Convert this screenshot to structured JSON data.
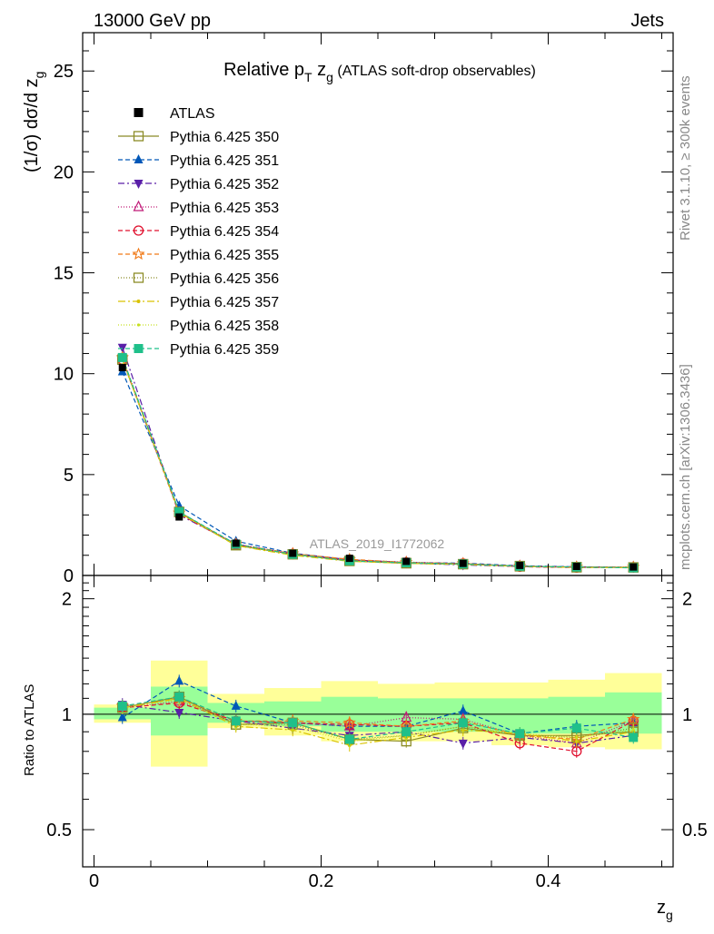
{
  "header": {
    "left": "13000 GeV pp",
    "right": "Jets"
  },
  "plot_title": {
    "main": "Relative p",
    "sub1": "T",
    "mid": " z",
    "sub2": "g",
    "tail": " (ATLAS soft-drop observables)"
  },
  "side_labels": {
    "rivet": "Rivet 3.1.10, ≥ 300k events",
    "mcplots": "mcplots.cern.ch [arXiv:1306.3436]"
  },
  "watermark": "ATLAS_2019_I1772062",
  "axes": {
    "ylabel_main": "(1/σ) dσ/d z",
    "ylabel_main_sub": "g",
    "ylabel_ratio": "Ratio to ATLAS",
    "xlabel": "z",
    "xlabel_sub": "g",
    "main_yticks": [
      "0",
      "5",
      "10",
      "15",
      "20",
      "25"
    ],
    "ratio_yticks_left": [
      "0.5",
      "1",
      "2"
    ],
    "ratio_yticks_right": [
      "0.5",
      "1",
      "2"
    ],
    "xticks": [
      "0",
      "0.2",
      "0.4"
    ]
  },
  "chart_data": {
    "type": "line",
    "title": "Relative pT zg (ATLAS soft-drop observables)",
    "xlabel": "zg",
    "ylabel": "(1/σ) dσ/d zg",
    "xlim": [
      -0.01,
      0.51
    ],
    "ylim": [
      0,
      26.9
    ],
    "ratio_ylim": [
      0.4,
      2.3
    ],
    "ratio_scale": "log",
    "grid": false,
    "legend_position": "top-left",
    "x": [
      0.025,
      0.075,
      0.125,
      0.175,
      0.225,
      0.275,
      0.325,
      0.375,
      0.425,
      0.475
    ],
    "bin_edges": [
      0.0,
      0.05,
      0.1,
      0.15,
      0.2,
      0.25,
      0.3,
      0.35,
      0.4,
      0.45,
      0.5
    ],
    "data": {
      "name": "ATLAS",
      "values": [
        10.3,
        2.9,
        1.6,
        1.1,
        0.85,
        0.7,
        0.6,
        0.5,
        0.45,
        0.42
      ],
      "ratio_band_inner": [
        [
          0.97,
          1.04
        ],
        [
          0.88,
          1.18
        ],
        [
          0.95,
          1.07
        ],
        [
          0.93,
          1.08
        ],
        [
          0.9,
          1.11
        ],
        [
          0.9,
          1.1
        ],
        [
          0.9,
          1.1
        ],
        [
          0.89,
          1.1
        ],
        [
          0.89,
          1.11
        ],
        [
          0.89,
          1.14
        ]
      ],
      "ratio_band_outer": [
        [
          0.95,
          1.06
        ],
        [
          0.73,
          1.38
        ],
        [
          0.92,
          1.13
        ],
        [
          0.88,
          1.17
        ],
        [
          0.85,
          1.22
        ],
        [
          0.85,
          1.2
        ],
        [
          0.85,
          1.21
        ],
        [
          0.83,
          1.21
        ],
        [
          0.82,
          1.23
        ],
        [
          0.81,
          1.28
        ]
      ]
    },
    "series": [
      {
        "name": "Pythia 6.425 350",
        "color": "#8b8b26",
        "dash": "",
        "marker": "square-open",
        "values": [
          10.7,
          3.15,
          1.5,
          1.05,
          0.72,
          0.6,
          0.56,
          0.47,
          0.42,
          0.4
        ],
        "ratio": [
          1.04,
          1.11,
          0.94,
          0.95,
          0.86,
          0.85,
          0.92,
          0.88,
          0.88,
          0.9
        ]
      },
      {
        "name": "Pythia 6.425 351",
        "color": "#0057b8",
        "dash": "5,3",
        "marker": "triangle-up",
        "values": [
          10.1,
          3.45,
          1.7,
          1.1,
          0.78,
          0.64,
          0.61,
          0.48,
          0.43,
          0.41
        ],
        "ratio": [
          0.98,
          1.22,
          1.05,
          0.95,
          0.93,
          0.93,
          1.02,
          0.89,
          0.93,
          0.95
        ]
      },
      {
        "name": "Pythia 6.425 352",
        "color": "#5a1fa8",
        "dash": "7,3,2,3",
        "marker": "triangle-down",
        "values": [
          11.3,
          3.0,
          1.55,
          1.05,
          0.74,
          0.62,
          0.52,
          0.44,
          0.41,
          0.39
        ],
        "ratio": [
          1.06,
          1.01,
          0.96,
          0.92,
          0.88,
          0.9,
          0.84,
          0.87,
          0.84,
          0.88
        ]
      },
      {
        "name": "Pythia 6.425 353",
        "color": "#c01b78",
        "dash": "1,2",
        "marker": "triangle-open",
        "values": [
          10.8,
          3.1,
          1.55,
          1.08,
          0.77,
          0.66,
          0.59,
          0.47,
          0.42,
          0.41
        ],
        "ratio": [
          1.04,
          1.08,
          0.96,
          0.95,
          0.93,
          0.98,
          0.97,
          0.88,
          0.84,
          0.96
        ]
      },
      {
        "name": "Pythia 6.425 354",
        "color": "#e0102e",
        "dash": "5,3",
        "marker": "circle-open",
        "values": [
          10.7,
          3.05,
          1.52,
          1.07,
          0.78,
          0.64,
          0.59,
          0.43,
          0.39,
          0.4
        ],
        "ratio": [
          1.04,
          1.07,
          0.96,
          0.95,
          0.94,
          0.93,
          0.95,
          0.84,
          0.8,
          0.96
        ]
      },
      {
        "name": "Pythia 6.425 355",
        "color": "#f07a18",
        "dash": "5,3",
        "marker": "star",
        "values": [
          10.8,
          3.1,
          1.55,
          1.08,
          0.8,
          0.65,
          0.59,
          0.46,
          0.42,
          0.41
        ],
        "ratio": [
          1.05,
          1.1,
          0.96,
          0.96,
          0.95,
          0.93,
          0.96,
          0.88,
          0.86,
          0.97
        ]
      },
      {
        "name": "Pythia 6.425 356",
        "color": "#8b8b26",
        "dash": "1,2",
        "marker": "square-open",
        "values": [
          10.7,
          3.15,
          1.5,
          1.05,
          0.72,
          0.62,
          0.56,
          0.45,
          0.4,
          0.4
        ],
        "ratio": [
          1.04,
          1.11,
          0.94,
          0.94,
          0.86,
          0.88,
          0.93,
          0.88,
          0.87,
          0.92
        ]
      },
      {
        "name": "Pythia 6.425 357",
        "color": "#d9c200",
        "dash": "8,3,2,3",
        "marker": "dot-line",
        "values": [
          10.7,
          3.1,
          1.48,
          1.0,
          0.7,
          0.6,
          0.55,
          0.45,
          0.4,
          0.39
        ],
        "ratio": [
          1.04,
          1.1,
          0.93,
          0.91,
          0.83,
          0.87,
          0.91,
          0.89,
          0.85,
          0.9
        ]
      },
      {
        "name": "Pythia 6.425 358",
        "color": "#c6e020",
        "dash": "1,2",
        "marker": "dot",
        "values": [
          10.7,
          3.1,
          1.5,
          1.02,
          0.72,
          0.62,
          0.56,
          0.45,
          0.41,
          0.4
        ],
        "ratio": [
          1.04,
          1.09,
          0.94,
          0.93,
          0.85,
          0.88,
          0.93,
          0.89,
          0.87,
          0.91
        ]
      },
      {
        "name": "Pythia 6.425 359",
        "color": "#1fc08a",
        "dash": "5,3",
        "marker": "square",
        "values": [
          10.8,
          3.15,
          1.55,
          1.05,
          0.73,
          0.63,
          0.57,
          0.46,
          0.42,
          0.38
        ],
        "ratio": [
          1.05,
          1.11,
          0.96,
          0.95,
          0.86,
          0.9,
          0.95,
          0.89,
          0.92,
          0.87
        ]
      }
    ]
  }
}
